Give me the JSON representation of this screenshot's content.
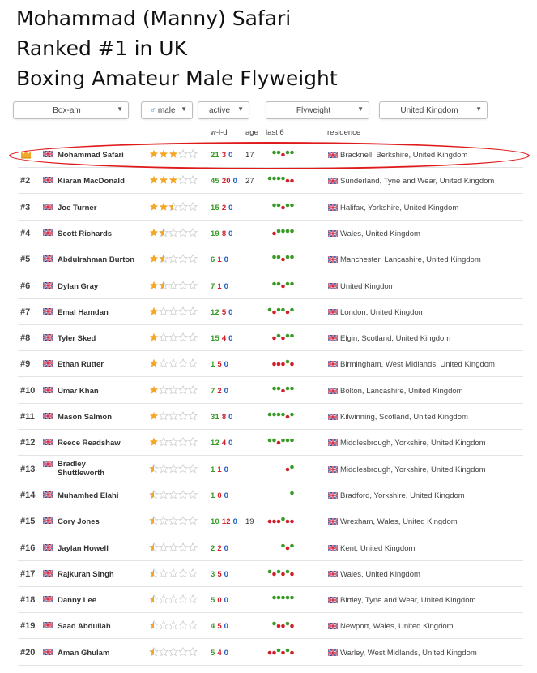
{
  "headline": [
    "Mohammad (Manny) Safari",
    "Ranked #1 in UK",
    "Boxing Amateur Male Flyweight"
  ],
  "filters": {
    "type": "Box-am",
    "sex": "male",
    "status": "active",
    "weight": "Flyweight",
    "country": "United Kingdom"
  },
  "columns": {
    "wld": "w-l-d",
    "age": "age",
    "last6": "last 6",
    "residence": "residence"
  },
  "colors": {
    "win": "#3a9a28",
    "loss": "#d11f2c",
    "draw": "#1f5fc4",
    "star": "#f5a623",
    "highlight": "#e01a1a"
  },
  "rows": [
    {
      "rank": "",
      "crown": true,
      "name": "Mohammad Safari",
      "stars": 3,
      "w": "21",
      "l": "3",
      "d": "0",
      "age": "17",
      "last6": "WWLWW",
      "residence": "Bracknell, Berkshire, United Kingdom"
    },
    {
      "rank": "#2",
      "name": "Kiaran MacDonald",
      "stars": 3,
      "w": "45",
      "l": "20",
      "d": "0",
      "age": "27",
      "last6": "WWWWLL",
      "residence": "Sunderland, Tyne and Wear, United Kingdom"
    },
    {
      "rank": "#3",
      "name": "Joe Turner",
      "stars": 2.5,
      "w": "15",
      "l": "2",
      "d": "0",
      "age": "",
      "last6": "WWLWW",
      "residence": "Halifax, Yorkshire, United Kingdom"
    },
    {
      "rank": "#4",
      "name": "Scott Richards",
      "stars": 1.5,
      "w": "19",
      "l": "8",
      "d": "0",
      "age": "",
      "last6": "LWWWW",
      "residence": "Wales, United Kingdom"
    },
    {
      "rank": "#5",
      "name": "Abdulrahman Burton",
      "stars": 1.5,
      "w": "6",
      "l": "1",
      "d": "0",
      "age": "",
      "last6": "WWLWW",
      "residence": "Manchester, Lancashire, United Kingdom"
    },
    {
      "rank": "#6",
      "name": "Dylan Gray",
      "stars": 1.5,
      "w": "7",
      "l": "1",
      "d": "0",
      "age": "",
      "last6": "WWLWW",
      "residence": "United Kingdom"
    },
    {
      "rank": "#7",
      "name": "Emal Hamdan",
      "stars": 1,
      "w": "12",
      "l": "5",
      "d": "0",
      "age": "",
      "last6": "WLWWLW",
      "residence": "London, United Kingdom"
    },
    {
      "rank": "#8",
      "name": "Tyler Sked",
      "stars": 1,
      "w": "15",
      "l": "4",
      "d": "0",
      "age": "",
      "last6": "LWLWW",
      "residence": "Elgin, Scotland, United Kingdom"
    },
    {
      "rank": "#9",
      "name": "Ethan Rutter",
      "stars": 1,
      "w": "1",
      "l": "5",
      "d": "0",
      "age": "",
      "last6": "LLLWL",
      "residence": "Birmingham, West Midlands, United Kingdom"
    },
    {
      "rank": "#10",
      "name": "Umar Khan",
      "stars": 1,
      "w": "7",
      "l": "2",
      "d": "0",
      "age": "",
      "last6": "WWLWW",
      "residence": "Bolton, Lancashire, United Kingdom"
    },
    {
      "rank": "#11",
      "name": "Mason Salmon",
      "stars": 1,
      "w": "31",
      "l": "8",
      "d": "0",
      "age": "",
      "last6": "WWWWLW",
      "residence": "Kilwinning, Scotland, United Kingdom"
    },
    {
      "rank": "#12",
      "name": "Reece Readshaw",
      "stars": 1,
      "w": "12",
      "l": "4",
      "d": "0",
      "age": "",
      "last6": "WWLWWW",
      "residence": "Middlesbrough, Yorkshire, United Kingdom"
    },
    {
      "rank": "#13",
      "name": "Bradley Shuttleworth",
      "stars": 0.5,
      "w": "1",
      "l": "1",
      "d": "0",
      "age": "",
      "last6": "LW",
      "residence": "Middlesbrough, Yorkshire, United Kingdom"
    },
    {
      "rank": "#14",
      "name": "Muhamhed Elahi",
      "stars": 0.5,
      "w": "1",
      "l": "0",
      "d": "0",
      "age": "",
      "last6": "W",
      "residence": "Bradford, Yorkshire, United Kingdom"
    },
    {
      "rank": "#15",
      "name": "Cory Jones",
      "stars": 0.5,
      "w": "10",
      "l": "12",
      "d": "0",
      "age": "19",
      "last6": "LLLWLL",
      "residence": "Wrexham, Wales, United Kingdom"
    },
    {
      "rank": "#16",
      "name": "Jaylan Howell",
      "stars": 0.5,
      "w": "2",
      "l": "2",
      "d": "0",
      "age": "",
      "last6": "WLW",
      "residence": "Kent, United Kingdom"
    },
    {
      "rank": "#17",
      "name": "Rajkuran Singh",
      "stars": 0.5,
      "w": "3",
      "l": "5",
      "d": "0",
      "age": "",
      "last6": "WLWLWL",
      "residence": "Wales, United Kingdom"
    },
    {
      "rank": "#18",
      "name": "Danny Lee",
      "stars": 0.5,
      "w": "5",
      "l": "0",
      "d": "0",
      "age": "",
      "last6": "WWWWW",
      "residence": "Birtley, Tyne and Wear, United Kingdom"
    },
    {
      "rank": "#19",
      "name": "Saad Abdullah",
      "stars": 0.5,
      "w": "4",
      "l": "5",
      "d": "0",
      "age": "",
      "last6": "WLLWL",
      "residence": "Newport, Wales, United Kingdom"
    },
    {
      "rank": "#20",
      "name": "Aman Ghulam",
      "stars": 0.5,
      "w": "5",
      "l": "4",
      "d": "0",
      "age": "",
      "last6": "LLWLWL",
      "residence": "Warley, West Midlands, United Kingdom"
    }
  ]
}
